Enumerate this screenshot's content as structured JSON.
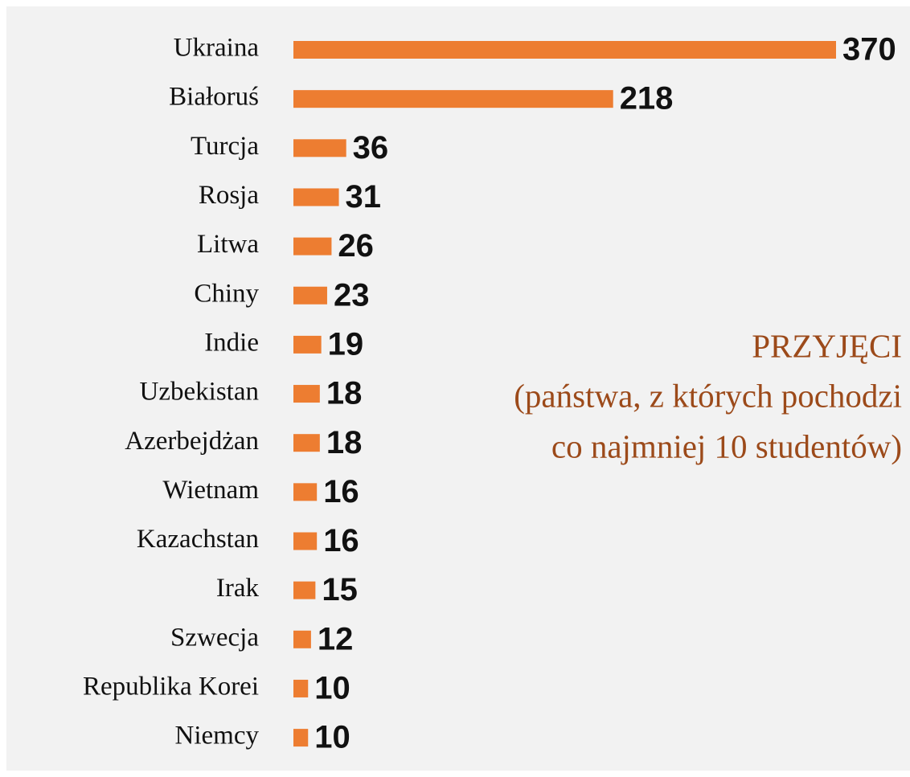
{
  "chart_data": {
    "type": "bar",
    "orientation": "horizontal",
    "title": "PRZYJĘCI",
    "subtitle": [
      "(państwa, z których pochodzi",
      "co najmniej 10 studentów)"
    ],
    "categories": [
      "Ukraina",
      "Białoruś",
      "Turcja",
      "Rosja",
      "Litwa",
      "Chiny",
      "Indie",
      "Uzbekistan",
      "Azerbejdżan",
      "Wietnam",
      "Kazachstan",
      "Irak",
      "Szwecja",
      "Republika Korei",
      "Niemcy"
    ],
    "values": [
      370,
      218,
      36,
      31,
      26,
      23,
      19,
      18,
      18,
      16,
      16,
      15,
      12,
      10,
      10
    ],
    "color": "#ed7d31"
  }
}
